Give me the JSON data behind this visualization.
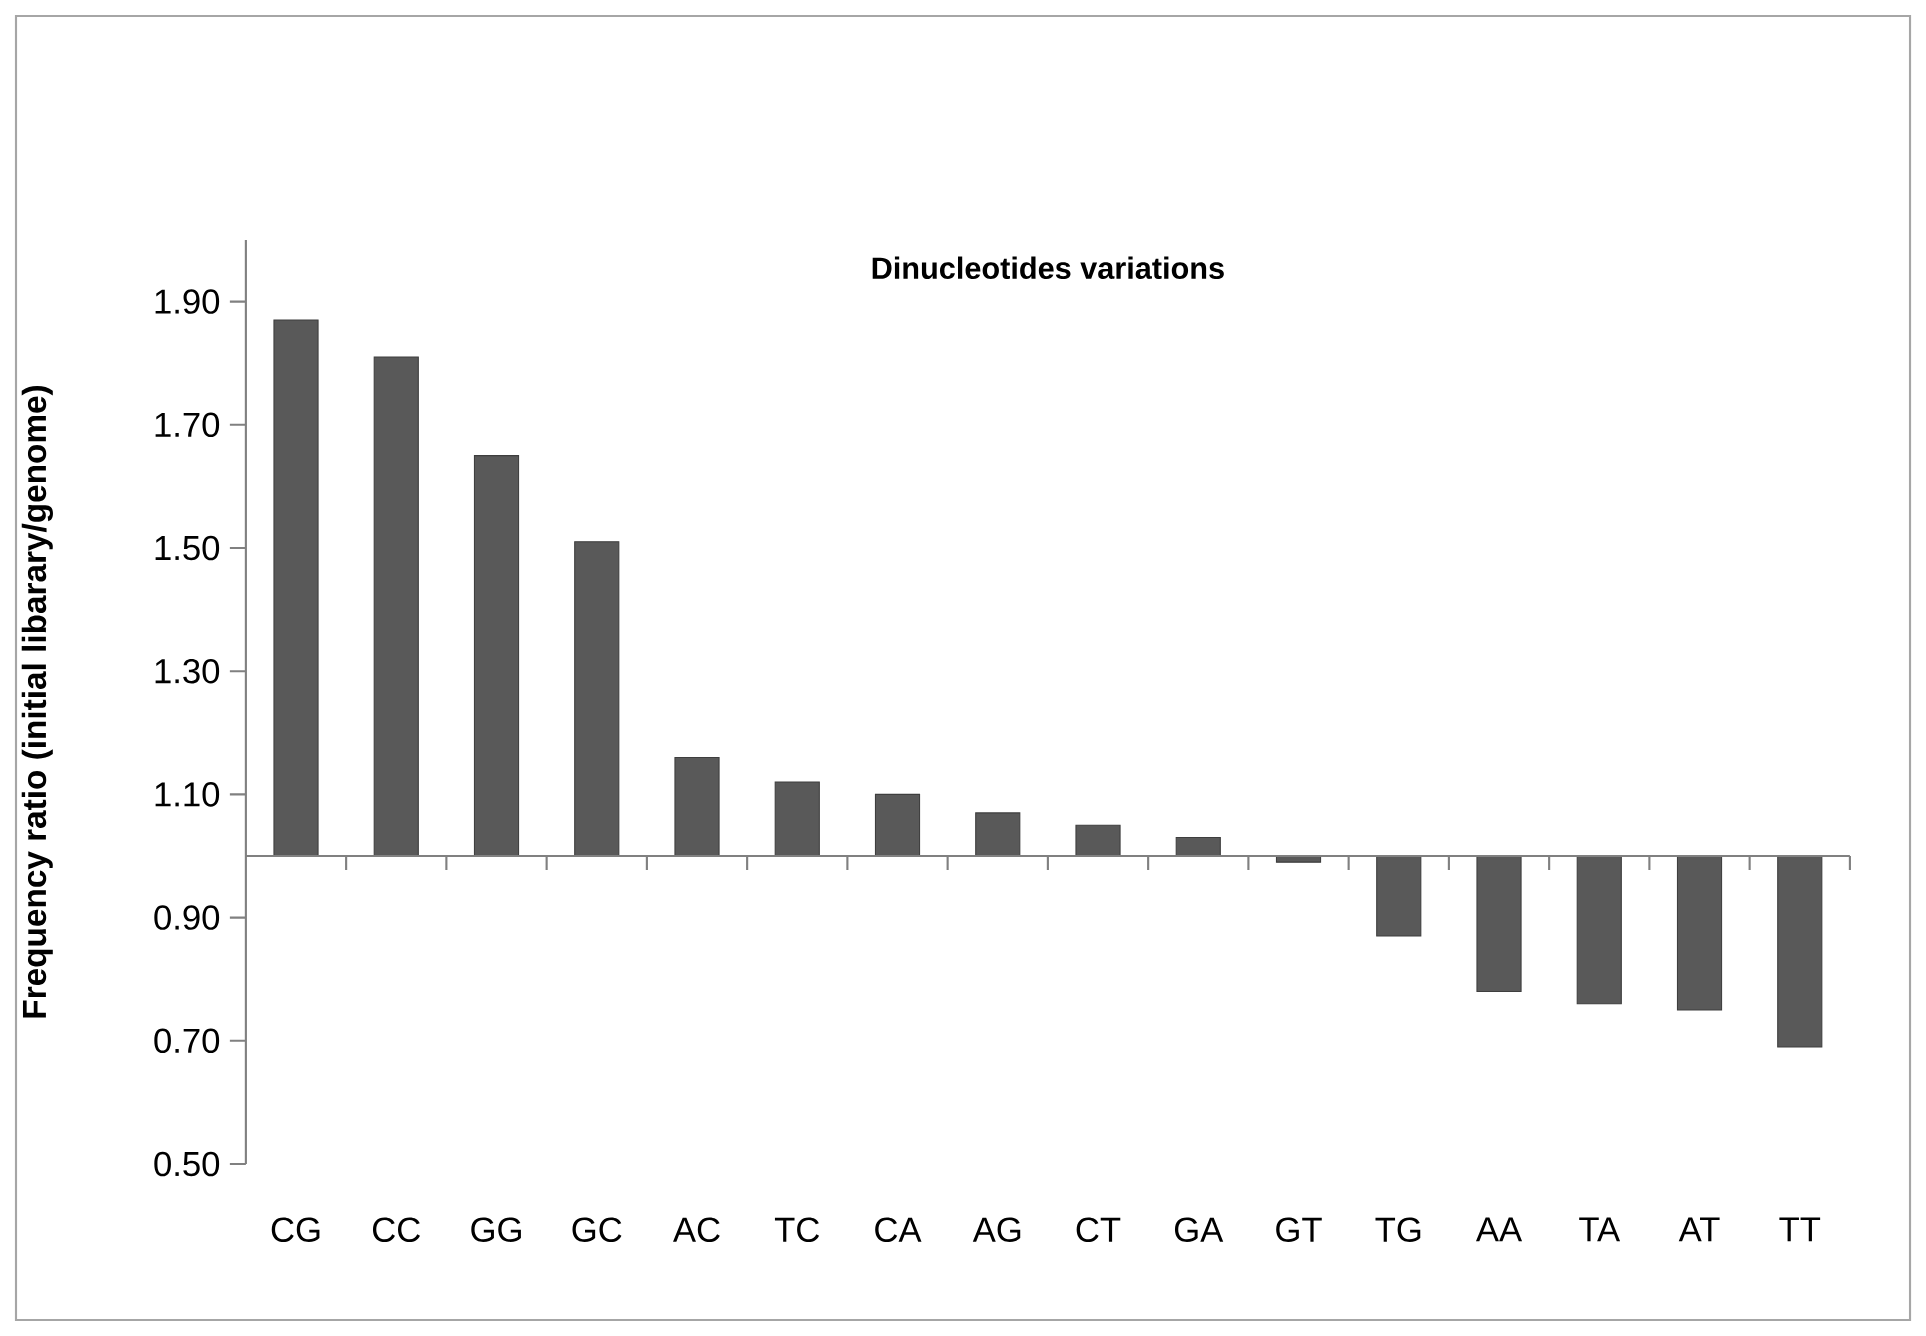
{
  "chart_data": {
    "type": "bar",
    "title": "Dinucleotides variations",
    "ylabel": "Frequency ratio (initial libarary/genome)",
    "categories": [
      "CG",
      "CC",
      "GG",
      "GC",
      "AC",
      "TC",
      "CA",
      "AG",
      "CT",
      "GA",
      "GT",
      "TG",
      "AA",
      "TA",
      "AT",
      "TT"
    ],
    "base": [
      1,
      1,
      1,
      1,
      1,
      1,
      1,
      1,
      1,
      1,
      1,
      1,
      1,
      1,
      1,
      1
    ],
    "values": [
      0.87,
      0.81,
      0.65,
      0.51,
      0.16,
      0.12,
      0.1,
      0.07,
      0.05,
      0.03,
      -0.01,
      -0.13,
      -0.22,
      -0.24,
      -0.25,
      -0.31
    ],
    "color": "#595959",
    "ref_lines": [
      {
        "axis": "y",
        "value": 1,
        "color": "#808080"
      }
    ],
    "ylim": [
      0.5,
      2.0
    ],
    "yticks": [
      {
        "value": 0.5,
        "label": "0.50"
      },
      {
        "value": 0.7,
        "label": "0.70"
      },
      {
        "value": 0.9,
        "label": "0.90"
      },
      {
        "value": 1.1,
        "label": "1.10"
      },
      {
        "value": 1.3,
        "label": "1.30"
      },
      {
        "value": 1.5,
        "label": "1.50"
      },
      {
        "value": 1.7,
        "label": "1.70"
      },
      {
        "value": 1.9,
        "label": "1.90"
      }
    ]
  }
}
